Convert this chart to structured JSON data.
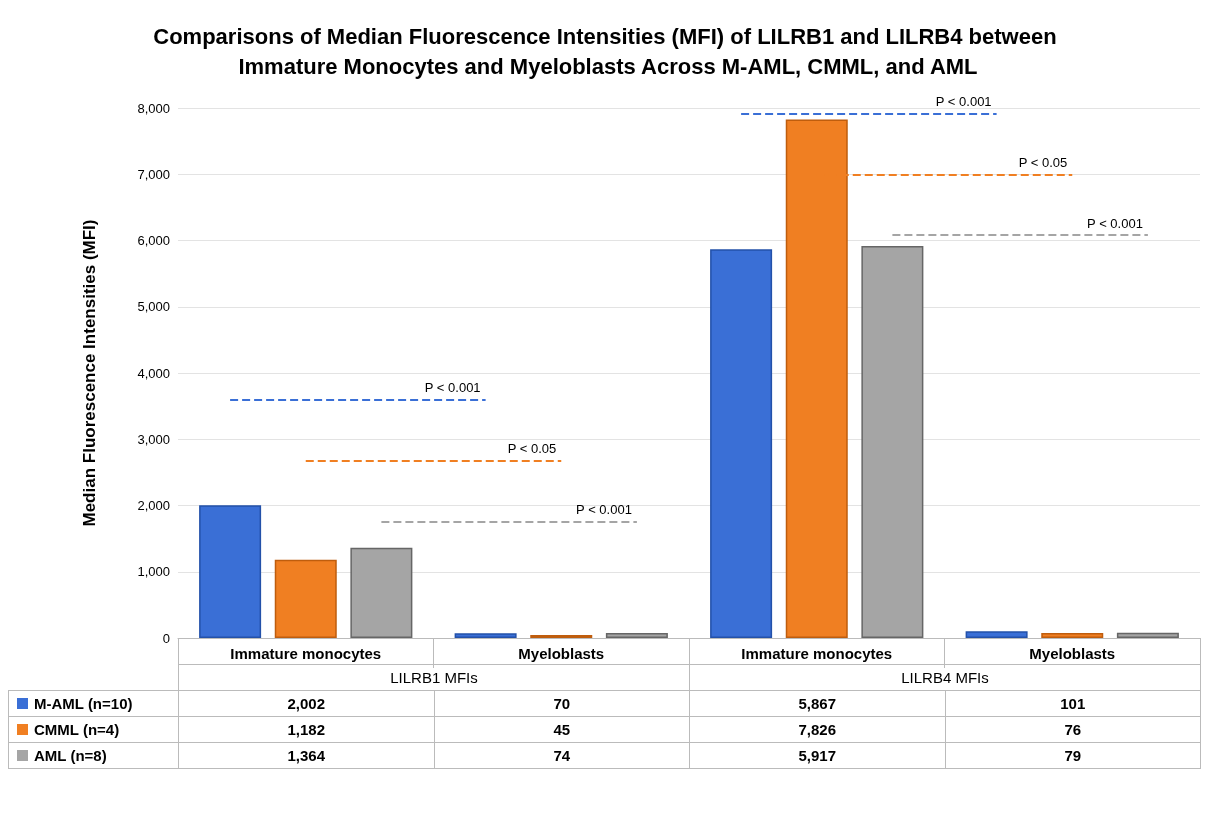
{
  "chart_data": {
    "type": "bar",
    "title": "Comparisons of Median Fluorescence Intensities (MFI) of LILRB1 and LILRB4 between Immature Monocytes and Myeloblasts Across M-AML, CMML, and AML",
    "ylabel": "Median Fluorescence Intensities (MFI)",
    "categories": [
      "Immature monocytes",
      "Myeloblasts",
      "Immature monocytes",
      "Myeloblasts"
    ],
    "series": [
      {
        "name": "M-AML (n=10)",
        "color": "#3a6fd6",
        "values": [
          2002,
          70,
          5867,
          101
        ],
        "value_labels": [
          "2,002",
          "70",
          "5,867",
          "101"
        ]
      },
      {
        "name": "CMML (n=4)",
        "color": "#f07f22",
        "values": [
          1182,
          45,
          7826,
          76
        ],
        "value_labels": [
          "1,182",
          "45",
          "7,826",
          "76"
        ]
      },
      {
        "name": "AML (n=8)",
        "color": "#a5a5a5",
        "values": [
          1364,
          74,
          5917,
          79
        ],
        "value_labels": [
          "1,364",
          "74",
          "5,917",
          "79"
        ]
      }
    ],
    "ylim": [
      0,
      8000
    ],
    "yticks": [
      {
        "value": 0,
        "label": "0"
      },
      {
        "value": 1000,
        "label": "1,000"
      },
      {
        "value": 2000,
        "label": "2,000"
      },
      {
        "value": 3000,
        "label": "3,000"
      },
      {
        "value": 4000,
        "label": "4,000"
      },
      {
        "value": 5000,
        "label": "5,000"
      },
      {
        "value": 6000,
        "label": "6,000"
      },
      {
        "value": 7000,
        "label": "7,000"
      },
      {
        "value": 8000,
        "label": "8,000"
      }
    ],
    "grid": "y",
    "legend": "bottom",
    "annotations": [
      "LILRB1 MFIs",
      "LILRB4 MFIs",
      "P < 0.001",
      "P < 0.05",
      "P < 0.001",
      "P < 0.001",
      "P < 0.05",
      "P < 0.001"
    ]
  }
}
